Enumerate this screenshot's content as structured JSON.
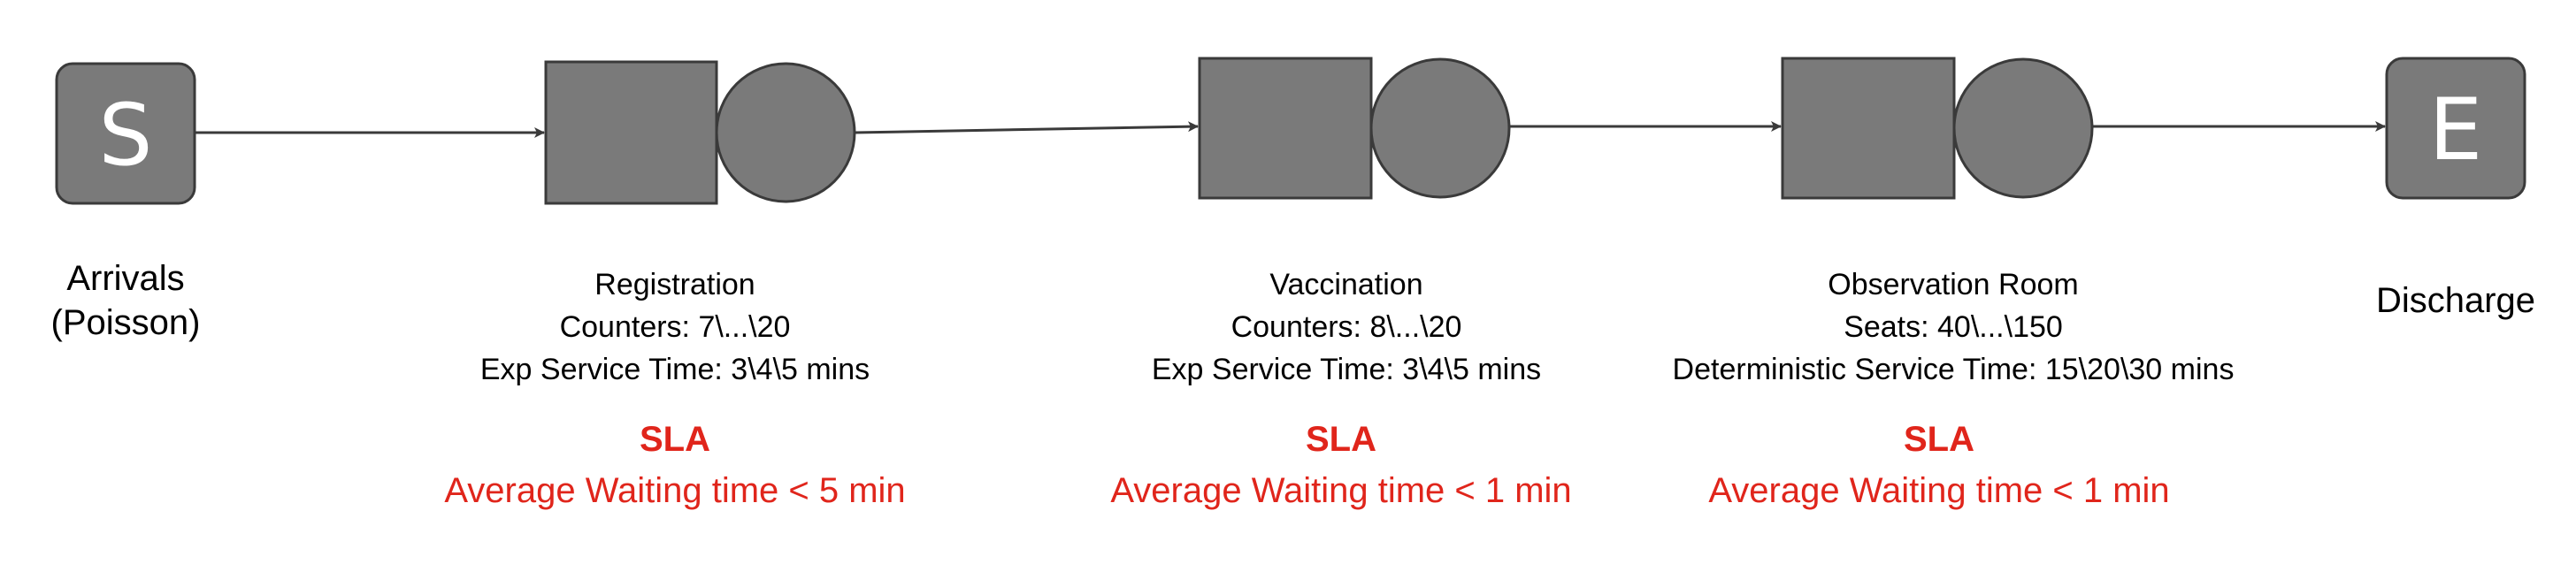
{
  "start": {
    "letter": "S",
    "label": [
      "Arrivals",
      "(Poisson)"
    ]
  },
  "end": {
    "letter": "E",
    "label": "Discharge"
  },
  "stages": [
    {
      "title": "Registration",
      "line1": "Counters: 7\\...\\20",
      "line2": "Exp Service Time: 3\\4\\5 mins",
      "sla_heading": "SLA",
      "sla_text": "Average Waiting time < 5 min"
    },
    {
      "title": "Vaccination",
      "line1": "Counters: 8\\...\\20",
      "line2": "Exp Service Time: 3\\4\\5 mins",
      "sla_heading": "SLA",
      "sla_text": "Average Waiting time < 1 min"
    },
    {
      "title": "Observation Room",
      "line1": "Seats: 40\\...\\150",
      "line2": "Deterministic Service Time: 15\\20\\30 mins",
      "sla_heading": "SLA",
      "sla_text": "Average Waiting time < 1 min"
    }
  ],
  "colors": {
    "node_fill": "#7a7a7a",
    "node_stroke": "#3a3a3a",
    "sla": "#e0251b"
  }
}
